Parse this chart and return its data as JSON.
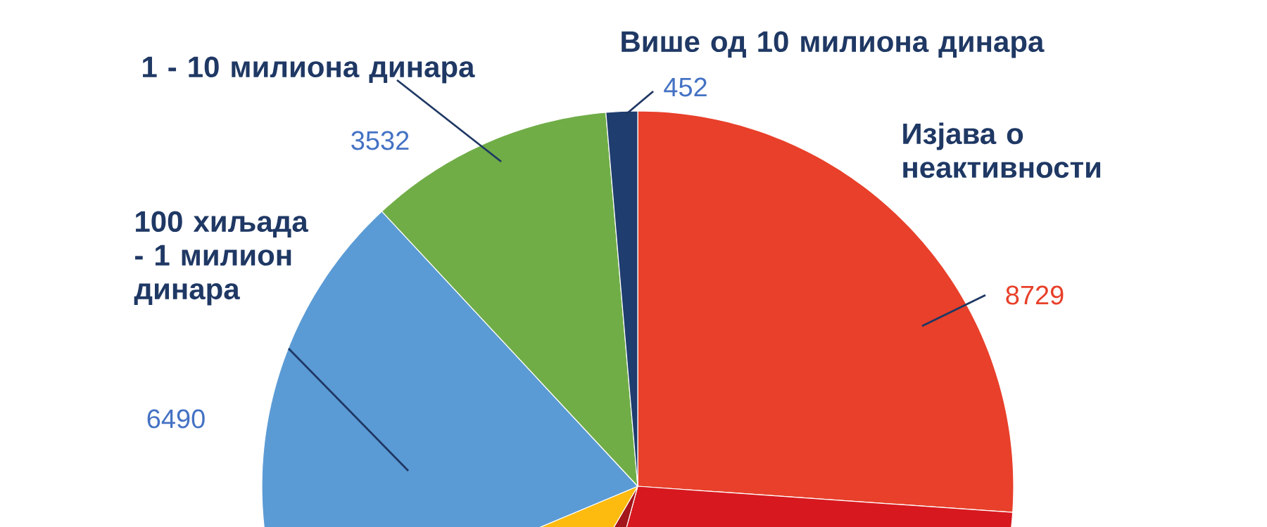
{
  "chart_data": {
    "type": "pie",
    "categories": [
      "Изјава о неактивности",
      null,
      null,
      null,
      "100 хиљада - 1 милион динара",
      "1 - 10 милиона динара",
      "Више од 10 милиона динара"
    ],
    "values": [
      8729,
      9400,
      1390,
      3440,
      6490,
      3532,
      452
    ],
    "value_labels": [
      "8729",
      null,
      null,
      null,
      "6490",
      "3532",
      "452"
    ],
    "colors": [
      "#e8402a",
      "#d7191f",
      "#a3161b",
      "#fdbb0f",
      "#5b9bd5",
      "#70ad47",
      "#1f3d6e"
    ]
  }
}
